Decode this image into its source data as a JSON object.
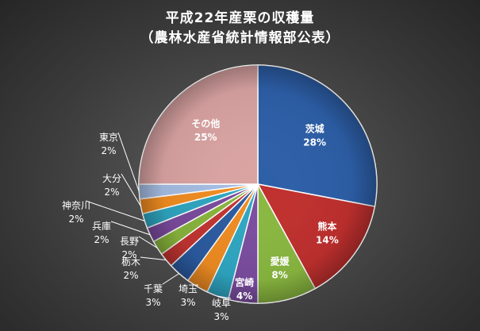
{
  "chart_data": {
    "type": "pie",
    "title_lines": [
      "平成22年産栗の収穫量",
      "（農林水産省統計情報部公表）"
    ],
    "start_angle_deg": 0,
    "direction": "clockwise",
    "slices": [
      {
        "name": "茨城",
        "value": 28,
        "label": "28%",
        "color": "#2d5fa8"
      },
      {
        "name": "熊本",
        "value": 14,
        "label": "14%",
        "color": "#c0302e"
      },
      {
        "name": "愛媛",
        "value": 8,
        "label": "8%",
        "color": "#8ab840"
      },
      {
        "name": "宮崎",
        "value": 4,
        "label": "4%",
        "color": "#7b4da0"
      },
      {
        "name": "岐阜",
        "value": 3,
        "label": "3%",
        "color": "#2fa7c3"
      },
      {
        "name": "埼玉",
        "value": 3,
        "label": "3%",
        "color": "#ef8c22"
      },
      {
        "name": "千葉",
        "value": 3,
        "label": "3%",
        "color": "#2b5ba0"
      },
      {
        "name": "栃木",
        "value": 2,
        "label": "2%",
        "color": "#c13431"
      },
      {
        "name": "長野",
        "value": 2,
        "label": "2%",
        "color": "#88b43c"
      },
      {
        "name": "兵庫",
        "value": 2,
        "label": "2%",
        "color": "#7a4a9c"
      },
      {
        "name": "神奈川",
        "value": 2,
        "label": "2%",
        "color": "#2fa5c0"
      },
      {
        "name": "大分",
        "value": 2,
        "label": "2%",
        "color": "#f08c20"
      },
      {
        "name": "東京",
        "value": 2,
        "label": "2%",
        "color": "#a5bde3"
      },
      {
        "name": "その他",
        "value": 25,
        "label": "25%",
        "color": "#d9a3a2"
      }
    ]
  }
}
